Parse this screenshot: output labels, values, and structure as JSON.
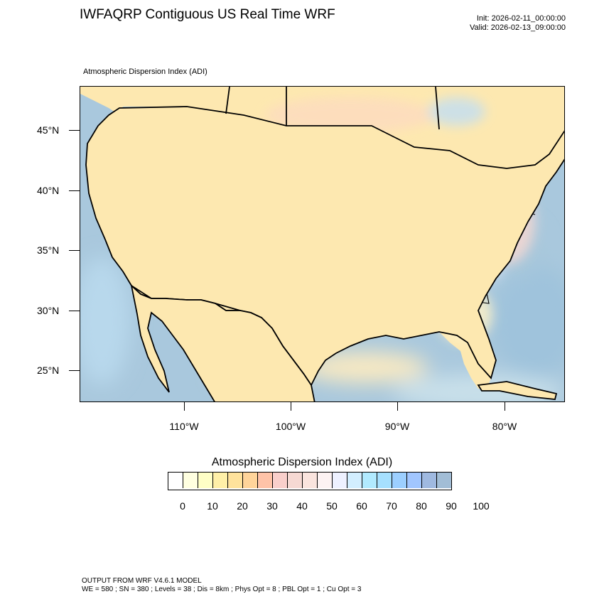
{
  "title": "IWFAQRP Contiguous US Real Time WRF",
  "init": "Init: 2026-02-11_00:00:00",
  "valid": "Valid: 2026-02-13_09:00:00",
  "subtitle": "Atmospheric Dispersion Index   (ADI)",
  "map": {
    "lat_labels": [
      "45°N",
      "40°N",
      "35°N",
      "30°N",
      "25°N"
    ],
    "lon_labels": [
      "110°W",
      "100°W",
      "90°W",
      "80°W"
    ],
    "ocean_color": "#a9c8dd",
    "land_color": "#fde8b0"
  },
  "colorbar": {
    "title": "Atmospheric Dispersion Index  (ADI)",
    "labels": [
      "0",
      "10",
      "20",
      "30",
      "40",
      "50",
      "60",
      "70",
      "80",
      "90",
      "100"
    ],
    "colors": [
      "#ffffff",
      "#ffffe0",
      "#ffffc6",
      "#fff0a8",
      "#ffe29c",
      "#ffd49a",
      "#ffc3a8",
      "#f9cfcb",
      "#f6d9d3",
      "#fae4de",
      "#fdf3f3",
      "#eef1ff",
      "#d2eeff",
      "#b1eaff",
      "#a6e0ff",
      "#9ccfff",
      "#a1c6ff",
      "#9fb9e0",
      "#a2bdd6"
    ]
  },
  "footer": {
    "line1": "OUTPUT FROM WRF V4.6.1 MODEL",
    "line2": "WE = 580 ; SN = 380 ; Levels = 38 ; Dis = 8km ; Phys Opt = 8 ; PBL Opt = 1 ; Cu Opt = 3"
  }
}
